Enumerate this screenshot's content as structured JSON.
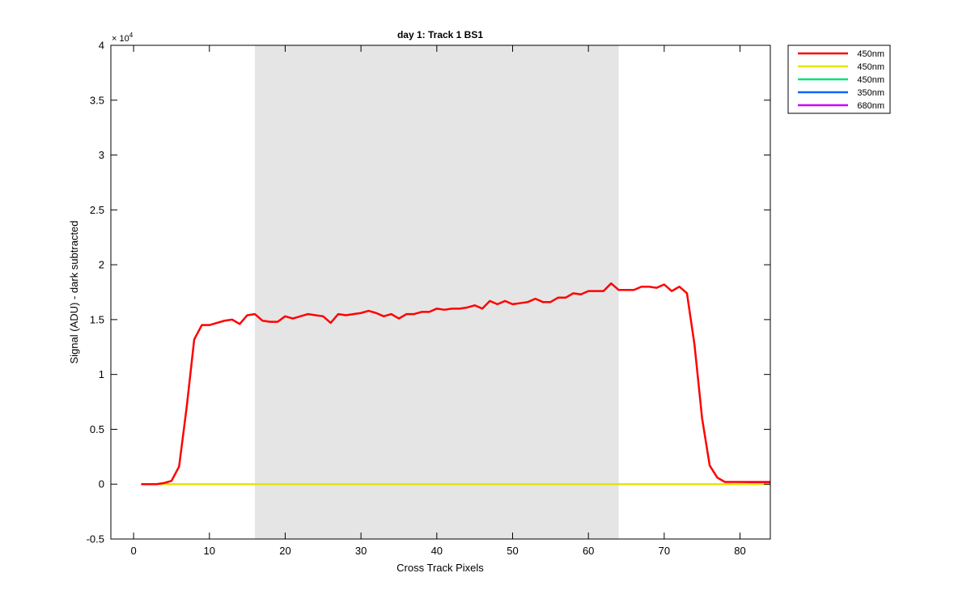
{
  "chart_data": {
    "type": "line",
    "title": "day 1: Track 1  BS1",
    "xlabel": "Cross Track Pixels",
    "ylabel": "Signal (ADU) - dark subtracted",
    "y_multiplier": "× 10",
    "y_exponent": "4",
    "xlim": [
      -3,
      84
    ],
    "ylim": [
      -0.5,
      4
    ],
    "x_ticks": [
      0,
      10,
      20,
      30,
      40,
      50,
      60,
      70,
      80
    ],
    "y_ticks": [
      -0.5,
      0,
      0.5,
      1,
      1.5,
      2,
      2.5,
      3,
      3.5,
      4
    ],
    "x_tick_labels": [
      "0",
      "10",
      "20",
      "30",
      "40",
      "50",
      "60",
      "70",
      "80"
    ],
    "y_tick_labels": [
      "-0.5",
      "0",
      "0.5",
      "1",
      "1.5",
      "2",
      "2.5",
      "3",
      "3.5",
      "4"
    ],
    "shaded_region": {
      "x_start": 16,
      "x_end": 64,
      "color": "#e5e5e5"
    },
    "legend_position": "outside top-right",
    "grid": false,
    "series": [
      {
        "name": "450nm",
        "color": "#ff0000",
        "x": [
          1,
          2,
          3,
          4,
          5,
          6,
          7,
          8,
          9,
          10,
          11,
          12,
          13,
          14,
          15,
          16,
          17,
          18,
          19,
          20,
          21,
          22,
          23,
          24,
          25,
          26,
          27,
          28,
          29,
          30,
          31,
          32,
          33,
          34,
          35,
          36,
          37,
          38,
          39,
          40,
          41,
          42,
          43,
          44,
          45,
          46,
          47,
          48,
          49,
          50,
          51,
          52,
          53,
          54,
          55,
          56,
          57,
          58,
          59,
          60,
          61,
          62,
          63,
          64,
          65,
          66,
          67,
          68,
          69,
          70,
          71,
          72,
          73,
          74,
          75,
          76,
          77,
          78,
          79,
          80,
          81,
          82,
          83,
          84
        ],
        "y": [
          0,
          0,
          0,
          0.01,
          0.03,
          0.16,
          0.7,
          1.32,
          1.45,
          1.45,
          1.47,
          1.49,
          1.5,
          1.46,
          1.54,
          1.55,
          1.49,
          1.48,
          1.48,
          1.53,
          1.51,
          1.53,
          1.55,
          1.54,
          1.53,
          1.47,
          1.55,
          1.54,
          1.55,
          1.56,
          1.58,
          1.56,
          1.53,
          1.55,
          1.51,
          1.55,
          1.55,
          1.57,
          1.57,
          1.6,
          1.59,
          1.6,
          1.6,
          1.61,
          1.63,
          1.6,
          1.67,
          1.64,
          1.67,
          1.64,
          1.65,
          1.66,
          1.69,
          1.66,
          1.66,
          1.7,
          1.7,
          1.74,
          1.73,
          1.76,
          1.76,
          1.76,
          1.83,
          1.77,
          1.77,
          1.77,
          1.8,
          1.8,
          1.79,
          1.82,
          1.76,
          1.8,
          1.74,
          1.27,
          0.6,
          0.17,
          0.06,
          0.02,
          0.02,
          0.02,
          0.02,
          0.02,
          0.02,
          0.02
        ]
      },
      {
        "name": "450nm",
        "color": "#e5e500",
        "x": [
          1,
          84
        ],
        "y": [
          0,
          0
        ]
      },
      {
        "name": "450nm",
        "color": "#00e080",
        "x": [
          1,
          84
        ],
        "y": [
          0,
          0
        ]
      },
      {
        "name": "350nm",
        "color": "#0066ff",
        "x": [
          1,
          84
        ],
        "y": [
          0,
          0
        ]
      },
      {
        "name": "680nm",
        "color": "#cc00ff",
        "x": [
          1,
          5,
          10,
          15,
          20,
          25,
          30,
          35,
          40,
          45,
          50,
          55,
          60,
          65,
          70,
          75,
          80,
          84
        ],
        "y": [
          0,
          0,
          0,
          0,
          0,
          0,
          0,
          0,
          0,
          0,
          0,
          0,
          0,
          0,
          0,
          0,
          0,
          0.01
        ]
      }
    ]
  }
}
